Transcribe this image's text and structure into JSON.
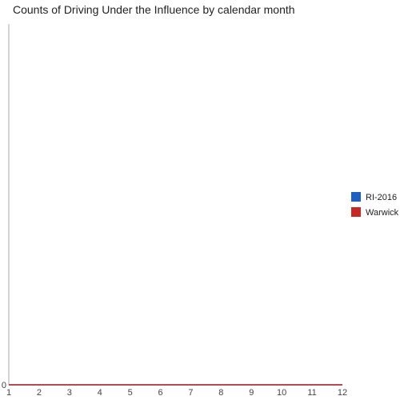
{
  "chart_data": {
    "type": "line",
    "title": "Counts of Driving Under the Influence by calendar month",
    "xlabel": "",
    "ylabel": "",
    "x": [
      1,
      2,
      3,
      4,
      5,
      6,
      7,
      8,
      9,
      10,
      11,
      12
    ],
    "xlim": [
      1,
      12
    ],
    "ylim": [
      0,
      1
    ],
    "y_ticks": [
      "0"
    ],
    "grid": false,
    "legend_position": "right",
    "series": [
      {
        "name": "RI-2016",
        "color": "#1f5fbf",
        "values": [
          0,
          0,
          0,
          0,
          0,
          0,
          0,
          0,
          0,
          0,
          0,
          0
        ]
      },
      {
        "name": "Warwick",
        "color": "#c62828",
        "values": [
          0,
          0,
          0,
          0,
          0,
          0,
          0,
          0,
          0,
          0,
          0,
          0
        ]
      }
    ]
  }
}
